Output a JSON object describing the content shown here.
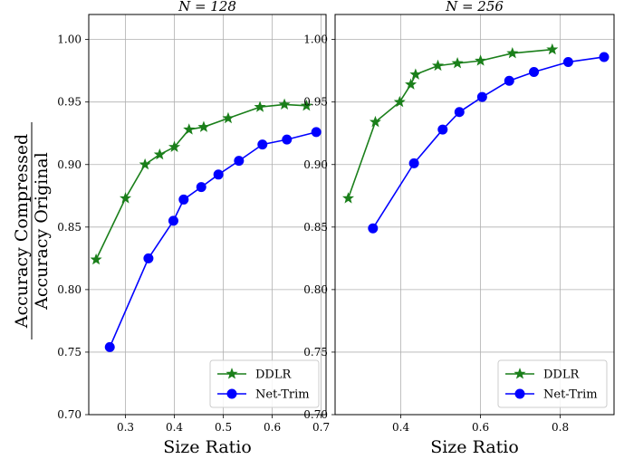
{
  "figure": {
    "ylabel_numerator": "Accuracy Compressed",
    "ylabel_denominator": "Accuracy Original"
  },
  "colors": {
    "DDLR": "#1a7f1a",
    "Net-Trim": "#0000ff",
    "grid": "#b0b0b0"
  },
  "chart_data": [
    {
      "type": "line",
      "title": "N = 128",
      "xlabel": "Size Ratio",
      "xlim": [
        0.225,
        0.71
      ],
      "ylim": [
        0.7,
        1.02
      ],
      "xticks": [
        0.3,
        0.4,
        0.5,
        0.6,
        0.7
      ],
      "xtick_labels": [
        "0.3",
        "0.4",
        "0.5",
        "0.6",
        "0.7"
      ],
      "yticks": [
        0.7,
        0.75,
        0.8,
        0.85,
        0.9,
        0.95,
        1.0
      ],
      "ytick_labels": [
        "0.70",
        "0.75",
        "0.80",
        "0.85",
        "0.90",
        "0.95",
        "1.00"
      ],
      "grid": true,
      "legend_position": "lower-right",
      "series": [
        {
          "name": "DDLR",
          "marker": "star",
          "x": [
            0.24,
            0.3,
            0.34,
            0.37,
            0.4,
            0.43,
            0.46,
            0.51,
            0.575,
            0.625,
            0.67
          ],
          "y": [
            0.824,
            0.873,
            0.9,
            0.908,
            0.914,
            0.928,
            0.93,
            0.937,
            0.946,
            0.948,
            0.947
          ]
        },
        {
          "name": "Net-Trim",
          "marker": "circle",
          "x": [
            0.268,
            0.347,
            0.398,
            0.419,
            0.455,
            0.49,
            0.532,
            0.58,
            0.63,
            0.69
          ],
          "y": [
            0.754,
            0.825,
            0.855,
            0.872,
            0.882,
            0.892,
            0.903,
            0.916,
            0.92,
            0.926
          ]
        }
      ]
    },
    {
      "type": "line",
      "title": "N = 256",
      "xlabel": "Size Ratio",
      "xlim": [
        0.235,
        0.935
      ],
      "ylim": [
        0.7,
        1.02
      ],
      "xticks": [
        0.4,
        0.6,
        0.8
      ],
      "xtick_labels": [
        "0.4",
        "0.6",
        "0.8"
      ],
      "yticks": [
        0.7,
        0.75,
        0.8,
        0.85,
        0.9,
        0.95,
        1.0
      ],
      "ytick_labels": [
        "0.70",
        "0.75",
        "0.80",
        "0.85",
        "0.90",
        "0.95",
        "1.00"
      ],
      "grid": true,
      "legend_position": "lower-right",
      "series": [
        {
          "name": "DDLR",
          "marker": "star",
          "x": [
            0.268,
            0.336,
            0.397,
            0.425,
            0.437,
            0.493,
            0.542,
            0.6,
            0.68,
            0.78
          ],
          "y": [
            0.873,
            0.934,
            0.95,
            0.964,
            0.972,
            0.979,
            0.981,
            0.983,
            0.989,
            0.992
          ]
        },
        {
          "name": "Net-Trim",
          "marker": "circle",
          "x": [
            0.33,
            0.433,
            0.505,
            0.547,
            0.604,
            0.672,
            0.734,
            0.82,
            0.91
          ],
          "y": [
            0.849,
            0.901,
            0.928,
            0.942,
            0.954,
            0.967,
            0.974,
            0.982,
            0.986
          ]
        }
      ]
    }
  ]
}
